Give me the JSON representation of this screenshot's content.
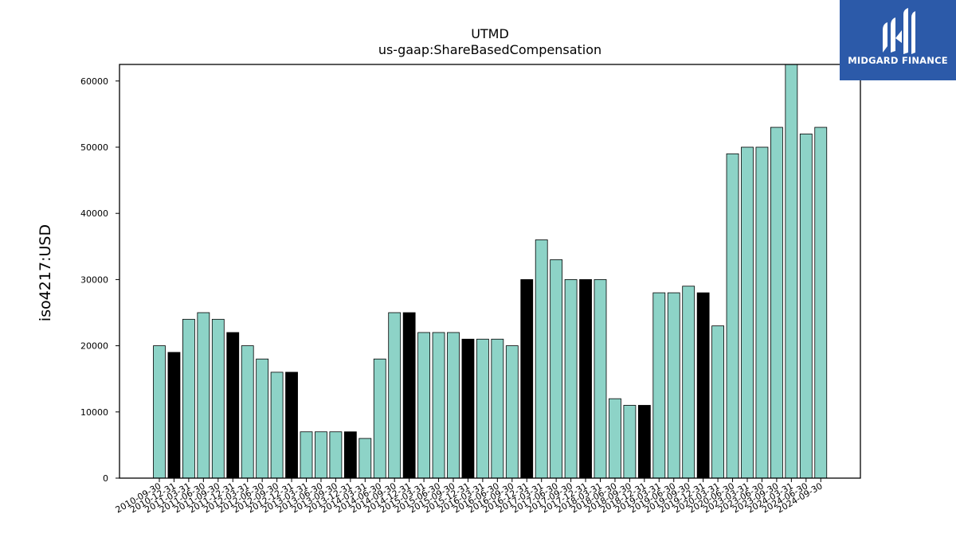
{
  "chart_data": {
    "type": "bar",
    "title": "UTMD",
    "subtitle": "us-gaap:ShareBasedCompensation",
    "xlabel": "",
    "ylabel": "iso4217:USD",
    "ylim": [
      0,
      62500
    ],
    "yticks": [
      0,
      10000,
      20000,
      30000,
      40000,
      50000,
      60000
    ],
    "categories": [
      "2010-09-30",
      "2010-12-31",
      "2011-03-31",
      "2011-06-30",
      "2011-09-30",
      "2011-12-31",
      "2012-03-31",
      "2012-06-30",
      "2012-09-30",
      "2012-12-31",
      "2013-03-31",
      "2013-06-30",
      "2013-09-30",
      "2013-12-31",
      "2014-03-31",
      "2014-06-30",
      "2014-09-30",
      "2014-12-31",
      "2015-03-31",
      "2015-06-30",
      "2015-09-30",
      "2015-12-31",
      "2016-03-31",
      "2016-06-30",
      "2016-09-30",
      "2016-12-31",
      "2017-03-31",
      "2017-06-30",
      "2017-09-30",
      "2017-12-31",
      "2018-03-31",
      "2018-06-30",
      "2018-09-30",
      "2018-12-31",
      "2019-03-31",
      "2019-06-30",
      "2019-09-30",
      "2019-12-31",
      "2020-03-31",
      "2020-06-30",
      "2023-03-31",
      "2023-06-30",
      "2023-09-30",
      "2024-03-31",
      "2024-06-30",
      "2024-09-30"
    ],
    "values": [
      20000,
      19000,
      24000,
      25000,
      24000,
      22000,
      20000,
      18000,
      16000,
      16000,
      7000,
      7000,
      7000,
      7000,
      6000,
      18000,
      25000,
      25000,
      22000,
      22000,
      22000,
      21000,
      21000,
      21000,
      20000,
      30000,
      36000,
      33000,
      30000,
      30000,
      30000,
      12000,
      11000,
      11000,
      28000,
      28000,
      29000,
      28000,
      23000,
      49000,
      50000,
      50000,
      53000,
      63000,
      52000,
      53000
    ],
    "highlight": [
      false,
      true,
      false,
      false,
      false,
      true,
      false,
      false,
      false,
      true,
      false,
      false,
      false,
      true,
      false,
      false,
      false,
      true,
      false,
      false,
      false,
      true,
      false,
      false,
      false,
      true,
      false,
      false,
      false,
      true,
      false,
      false,
      false,
      true,
      false,
      false,
      false,
      true,
      false,
      false,
      false,
      false,
      false,
      false,
      false,
      false
    ],
    "colors": {
      "bar": "#8dd3c7",
      "highlight": "#000000",
      "edge": "#000000"
    },
    "grid": false,
    "legend": "none"
  },
  "logo": {
    "text": "MIDGARD FINANCE",
    "bg": "#2c5aa9"
  }
}
